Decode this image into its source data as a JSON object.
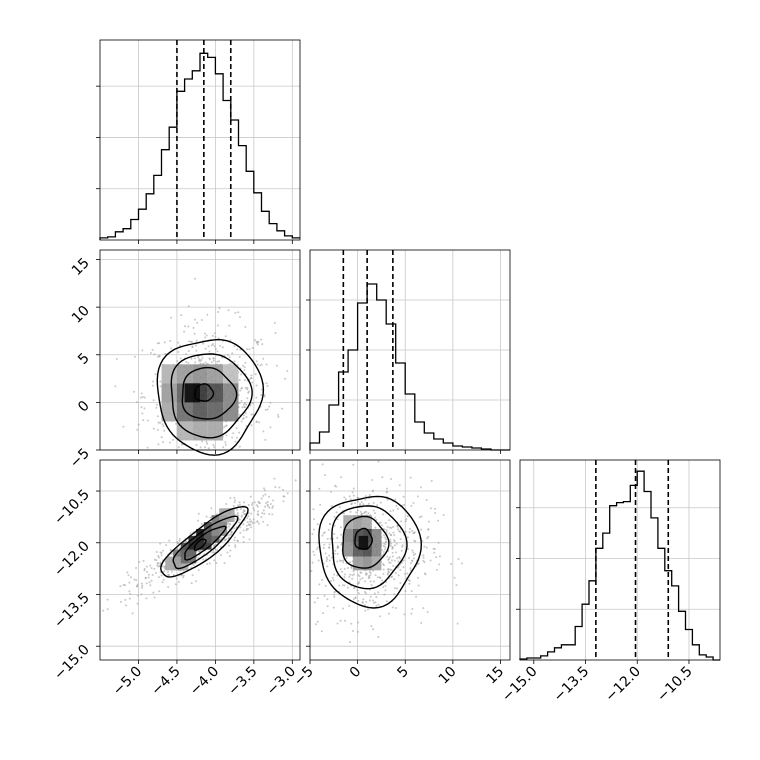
{
  "chart_data": {
    "type": "corner",
    "parameters": [
      {
        "range": [
          -5.5,
          -2.9
        ],
        "ticks": [
          -5.0,
          -4.5,
          -4.0,
          -3.5,
          -3.0
        ],
        "tick_labels": [
          "−5.0",
          "−4.5",
          "−4.0",
          "−3.5",
          "−3.0"
        ],
        "quantiles": [
          -4.5,
          -4.15,
          -3.8
        ],
        "hist_edges": [
          -5.5,
          -5.4,
          -5.3,
          -5.2,
          -5.1,
          -5.0,
          -4.9,
          -4.8,
          -4.7,
          -4.6,
          -4.5,
          -4.4,
          -4.3,
          -4.2,
          -4.1,
          -4.0,
          -3.9,
          -3.8,
          -3.7,
          -3.6,
          -3.5,
          -3.4,
          -3.3,
          -3.2,
          -3.1,
          -3.0,
          -2.9
        ],
        "hist_counts": [
          2,
          3,
          8,
          11,
          20,
          30,
          45,
          63,
          88,
          110,
          145,
          157,
          165,
          182,
          178,
          162,
          136,
          117,
          92,
          67,
          46,
          28,
          16,
          9,
          4,
          2
        ],
        "hist_ymax": 195
      },
      {
        "range": [
          -5,
          16
        ],
        "ticks": [
          -5,
          0,
          5,
          10,
          15
        ],
        "tick_labels": [
          "−5",
          "0",
          "5",
          "10",
          "15"
        ],
        "quantiles": [
          -1.5,
          1.0,
          3.7
        ],
        "hist_edges": [
          -5,
          -4,
          -3,
          -2,
          -1,
          0,
          1,
          2,
          3,
          4,
          5,
          6,
          7,
          8,
          9,
          10,
          11,
          12,
          13,
          14,
          15,
          16
        ],
        "hist_counts": [
          7,
          18,
          45,
          78,
          100,
          147,
          166,
          150,
          126,
          87,
          56,
          28,
          17,
          11,
          7,
          4,
          3,
          2,
          1,
          0,
          0
        ],
        "hist_ymax": 200
      },
      {
        "range": [
          -15.4,
          -9.6
        ],
        "ticks": [
          -15.0,
          -13.5,
          -12.0,
          -10.5
        ],
        "tick_labels": [
          "−15.0",
          "−13.5",
          "−12.0",
          "−10.5"
        ],
        "quantiles": [
          -13.2,
          -12.05,
          -11.1
        ],
        "hist_edges": [
          -15.4,
          -15.2,
          -15.0,
          -14.8,
          -14.6,
          -14.4,
          -14.2,
          -14.0,
          -13.8,
          -13.6,
          -13.4,
          -13.2,
          -13.0,
          -12.8,
          -12.6,
          -12.4,
          -12.2,
          -12.0,
          -11.8,
          -11.6,
          -11.4,
          -11.2,
          -11.0,
          -10.8,
          -10.6,
          -10.4,
          -10.2,
          -10.0,
          -9.8,
          -9.6
        ],
        "hist_counts": [
          1,
          2,
          2,
          4,
          8,
          12,
          15,
          15,
          33,
          55,
          78,
          110,
          125,
          152,
          155,
          156,
          172,
          186,
          166,
          140,
          110,
          88,
          73,
          48,
          30,
          15,
          5,
          3,
          0
        ],
        "hist_ymax": 197
      }
    ],
    "contours": [
      {
        "row": 1,
        "col": 0,
        "levels": [
          {
            "center": [
              -4.08,
              0.8
            ],
            "rx": 0.68,
            "ry": 6.0,
            "angle": 0
          },
          {
            "center": [
              -4.08,
              0.8
            ],
            "rx": 0.52,
            "ry": 4.4,
            "angle": 0
          },
          {
            "center": [
              -4.1,
              0.9
            ],
            "rx": 0.35,
            "ry": 2.7,
            "angle": 0
          },
          {
            "center": [
              -4.15,
              1.0
            ],
            "rx": 0.12,
            "ry": 0.9,
            "angle": 0
          }
        ]
      },
      {
        "row": 2,
        "col": 0,
        "levels": [
          {
            "center": [
              -4.15,
              -12.0
            ],
            "major": 1.05,
            "minor": 0.23,
            "slope": 1.6
          },
          {
            "center": [
              -4.15,
              -12.0
            ],
            "major": 0.78,
            "minor": 0.16,
            "slope": 1.6
          },
          {
            "center": [
              -4.15,
              -12.0
            ],
            "major": 0.5,
            "minor": 0.1,
            "slope": 1.6
          },
          {
            "center": [
              -4.2,
              -12.05
            ],
            "major": 0.14,
            "minor": 0.05,
            "slope": 1.6
          }
        ]
      },
      {
        "row": 2,
        "col": 1,
        "levels": [
          {
            "center": [
              1.2,
              -12.2
            ],
            "rx": 5.3,
            "ry": 1.6
          },
          {
            "center": [
              1.0,
              -12.1
            ],
            "rx": 3.9,
            "ry": 1.2
          },
          {
            "center": [
              0.7,
              -12.0
            ],
            "rx": 2.4,
            "ry": 0.75
          },
          {
            "center": [
              0.6,
              -11.9
            ],
            "rx": 0.9,
            "ry": 0.3
          }
        ]
      }
    ],
    "density_cells": [
      {
        "row": 1,
        "col": 0,
        "cells": [
          [
            -4.6,
            3,
            0.25
          ],
          [
            -4.4,
            3,
            0.35
          ],
          [
            -4.2,
            3,
            0.4
          ],
          [
            -4.0,
            3,
            0.35
          ],
          [
            -3.8,
            3,
            0.2
          ],
          [
            -4.6,
            1,
            0.35
          ],
          [
            -4.4,
            1,
            0.6
          ],
          [
            -4.2,
            1,
            0.8
          ],
          [
            -4.0,
            1,
            0.7
          ],
          [
            -3.8,
            1,
            0.45
          ],
          [
            -4.6,
            -1,
            0.3
          ],
          [
            -4.4,
            -1,
            0.55
          ],
          [
            -4.2,
            -1,
            0.65
          ],
          [
            -4.0,
            -1,
            0.6
          ],
          [
            -3.8,
            -1,
            0.45
          ],
          [
            -4.4,
            -3,
            0.25
          ],
          [
            -4.2,
            -3,
            0.3
          ],
          [
            -4.0,
            -3,
            0.3
          ],
          [
            -4.3,
            1,
            0.95
          ]
        ]
      },
      {
        "row": 2,
        "col": 0,
        "cells": [
          [
            -4.55,
            -12.6,
            0.3
          ],
          [
            -4.45,
            -12.4,
            0.5
          ],
          [
            -4.35,
            -12.2,
            0.7
          ],
          [
            -4.25,
            -12.0,
            0.85
          ],
          [
            -4.15,
            -11.8,
            0.95
          ],
          [
            -4.05,
            -11.6,
            0.7
          ],
          [
            -3.95,
            -11.4,
            0.5
          ],
          [
            -3.85,
            -11.2,
            0.3
          ],
          [
            -4.45,
            -12.6,
            0.3
          ],
          [
            -4.35,
            -12.4,
            0.55
          ],
          [
            -4.15,
            -12.0,
            0.8
          ],
          [
            -4.05,
            -11.8,
            0.6
          ],
          [
            -3.95,
            -11.6,
            0.4
          ]
        ]
      },
      {
        "row": 2,
        "col": 1,
        "cells": [
          [
            -1,
            -11.4,
            0.3
          ],
          [
            0,
            -11.4,
            0.35
          ],
          [
            1,
            -11.4,
            0.3
          ],
          [
            -1,
            -11.8,
            0.45
          ],
          [
            0,
            -11.8,
            0.7
          ],
          [
            1,
            -11.8,
            0.75
          ],
          [
            2,
            -11.8,
            0.45
          ],
          [
            -1,
            -12.2,
            0.4
          ],
          [
            0,
            -12.2,
            0.65
          ],
          [
            1,
            -12.2,
            0.7
          ],
          [
            2,
            -12.2,
            0.45
          ],
          [
            0,
            -12.6,
            0.35
          ],
          [
            1,
            -12.6,
            0.4
          ],
          [
            2,
            -12.6,
            0.3
          ],
          [
            0.6,
            -12.0,
            0.95
          ]
        ]
      }
    ],
    "scatter_fields": [
      {
        "row": 1,
        "col": 0,
        "count": 650
      },
      {
        "row": 2,
        "col": 0,
        "count": 650
      },
      {
        "row": 2,
        "col": 1,
        "count": 650
      }
    ],
    "xlabel": "",
    "ylabel": "",
    "title": "",
    "grid": true
  }
}
